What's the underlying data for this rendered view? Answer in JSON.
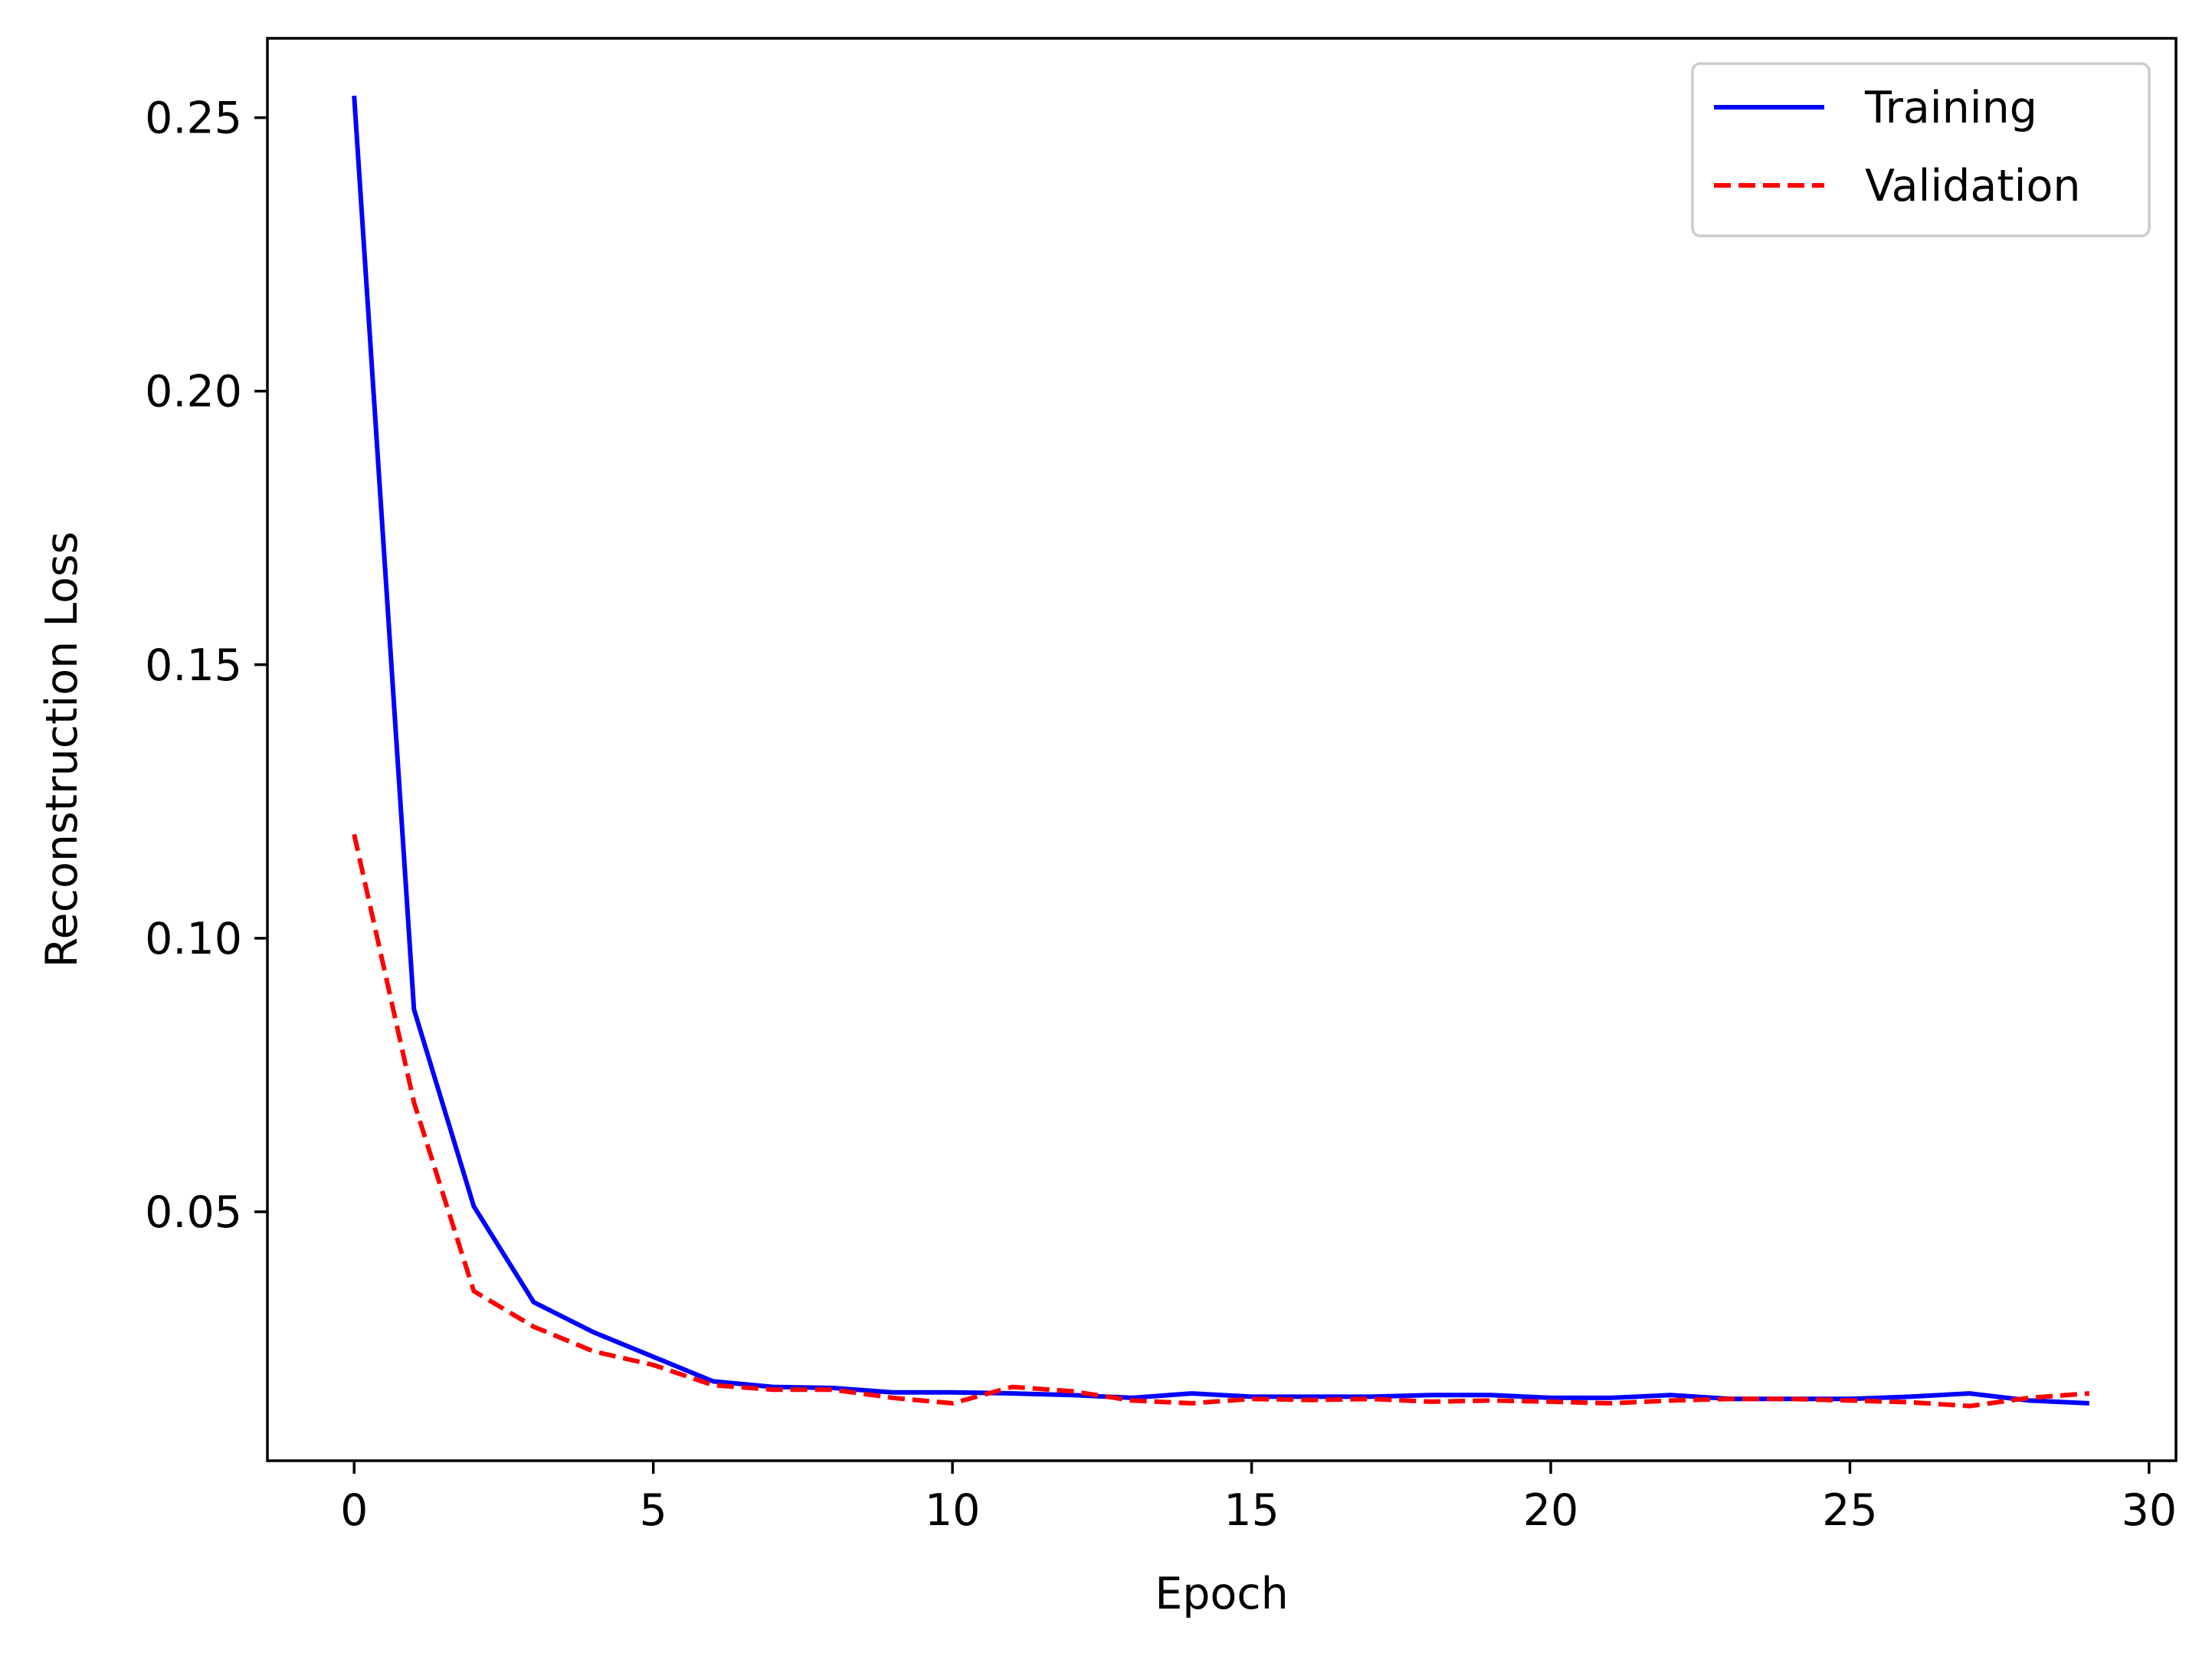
{
  "chart_data": {
    "type": "line",
    "title": "",
    "xlabel": "Epoch",
    "ylabel": "Reconstruction Loss",
    "xlim": [
      -1.45,
      30.45
    ],
    "ylim": [
      0.0045,
      0.2645
    ],
    "xticks": [
      0,
      5,
      10,
      15,
      20,
      25,
      30
    ],
    "xtick_labels": [
      "0",
      "5",
      "10",
      "15",
      "20",
      "25",
      "30"
    ],
    "yticks": [
      0.05,
      0.1,
      0.15,
      0.2,
      0.25
    ],
    "ytick_labels": [
      "0.05",
      "0.10",
      "0.15",
      "0.20",
      "0.25"
    ],
    "grid": false,
    "legend_position": "top-right",
    "x": [
      0,
      1,
      2,
      3,
      4,
      5,
      6,
      7,
      8,
      9,
      10,
      11,
      12,
      13,
      14,
      15,
      16,
      17,
      18,
      19,
      20,
      21,
      22,
      23,
      24,
      25,
      26,
      27,
      28,
      29
    ],
    "series": [
      {
        "name": "Training",
        "color": "#0000ff",
        "style": "solid",
        "values": [
          0.254,
          0.087,
          0.051,
          0.0335,
          0.028,
          0.0235,
          0.019,
          0.018,
          0.0178,
          0.017,
          0.017,
          0.0168,
          0.0165,
          0.016,
          0.0168,
          0.0162,
          0.0162,
          0.0162,
          0.0165,
          0.0165,
          0.016,
          0.016,
          0.0165,
          0.0158,
          0.0158,
          0.0158,
          0.0162,
          0.0168,
          0.0155,
          0.015
        ]
      },
      {
        "name": "Validation",
        "color": "#ff0000",
        "style": "dashed",
        "values": [
          0.119,
          0.07,
          0.0355,
          0.029,
          0.0245,
          0.022,
          0.0183,
          0.0175,
          0.0175,
          0.016,
          0.015,
          0.018,
          0.0172,
          0.0155,
          0.015,
          0.0158,
          0.0156,
          0.0158,
          0.0153,
          0.0155,
          0.0153,
          0.015,
          0.0155,
          0.0158,
          0.0158,
          0.0155,
          0.0152,
          0.0145,
          0.016,
          0.0168
        ]
      }
    ]
  }
}
